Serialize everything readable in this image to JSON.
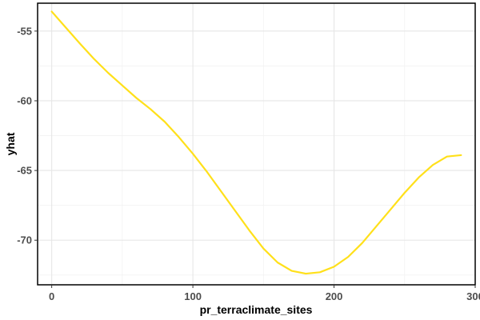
{
  "chart_data": {
    "type": "line",
    "title": "",
    "xlabel": "pr_terraclimate_sites",
    "ylabel": "yhat",
    "xlim": [
      -10,
      300
    ],
    "ylim": [
      -73.2,
      -53
    ],
    "x_ticks": [
      0,
      100,
      200,
      300
    ],
    "x_tick_labels": [
      "0",
      "100",
      "200",
      "300"
    ],
    "x_minor_ticks": [
      50,
      150,
      250
    ],
    "y_ticks": [
      -55,
      -60,
      -65,
      -70
    ],
    "y_tick_labels": [
      "-55",
      "-60",
      "-65",
      "-70"
    ],
    "y_minor_ticks": [
      -57.5,
      -62.5,
      -67.5,
      -72.5
    ],
    "grid": true,
    "line_color": "#FFE01A",
    "series": [
      {
        "x": [
          0,
          10,
          20,
          30,
          40,
          50,
          60,
          70,
          80,
          90,
          100,
          110,
          120,
          130,
          140,
          150,
          160,
          170,
          180,
          190,
          200,
          210,
          220,
          230,
          240,
          250,
          260,
          270,
          280,
          290
        ],
        "values": [
          -53.6,
          -54.75,
          -55.9,
          -57.0,
          -58.0,
          -58.9,
          -59.8,
          -60.6,
          -61.5,
          -62.6,
          -63.8,
          -65.1,
          -66.5,
          -67.9,
          -69.3,
          -70.6,
          -71.6,
          -72.2,
          -72.4,
          -72.3,
          -71.9,
          -71.2,
          -70.2,
          -69.0,
          -67.8,
          -66.6,
          -65.5,
          -64.6,
          -64.0,
          -63.9
        ]
      }
    ]
  }
}
